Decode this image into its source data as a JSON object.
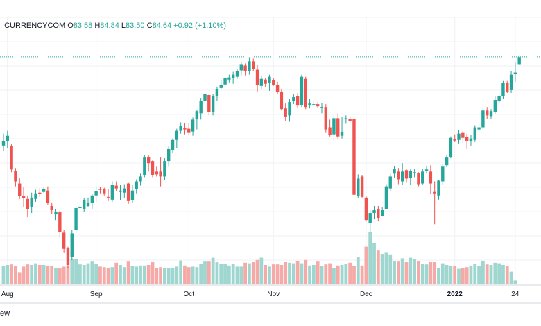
{
  "legend": {
    "symbol": ", CURRENCYCOM",
    "open_label": "O",
    "open": "83.58",
    "high_label": "H",
    "high": "84.84",
    "low_label": "L",
    "low": "83.50",
    "close_label": "C",
    "close": "84.64",
    "change": "+0.92 (+1.10%)"
  },
  "footer": {
    "text": "ew"
  },
  "colors": {
    "up": "#26a69a",
    "down": "#ef5350",
    "up_vol": "#9fd6cf",
    "down_vol": "#f5aaa7",
    "grid": "#eef0f3",
    "axis": "#d1d4dc",
    "last_price": "#26a69a"
  },
  "chart_data": {
    "type": "candlestick",
    "symbol": "CURRENCYCOM",
    "period": "2021-07 to 2022-01",
    "y_range": [
      55,
      87
    ],
    "last_price": 84.64,
    "x_tick_labels": [
      "Aug",
      "Sep",
      "Oct",
      "Nov",
      "Dec",
      "2022",
      "24"
    ],
    "x_tick_index": [
      1,
      23,
      46,
      67,
      90,
      112,
      127
    ],
    "ohlc": [
      [
        72.0,
        73.7,
        71.3,
        72.6
      ],
      [
        72.6,
        74.1,
        71.6,
        73.4
      ],
      [
        72.0,
        72.2,
        68.2,
        68.6
      ],
      [
        68.4,
        68.8,
        66.2,
        66.9
      ],
      [
        66.6,
        67.4,
        64.4,
        64.8
      ],
      [
        64.8,
        66.1,
        63.3,
        64.5
      ],
      [
        64.4,
        64.9,
        61.8,
        63.0
      ],
      [
        63.3,
        65.3,
        62.4,
        64.6
      ],
      [
        64.4,
        65.7,
        64.0,
        65.2
      ],
      [
        65.3,
        65.9,
        64.7,
        65.1
      ],
      [
        65.4,
        66.0,
        65.3,
        65.8
      ],
      [
        65.6,
        66.2,
        63.5,
        63.8
      ],
      [
        63.4,
        63.9,
        62.3,
        62.8
      ],
      [
        62.2,
        63.0,
        61.4,
        62.6
      ],
      [
        62.5,
        62.8,
        58.9,
        59.7
      ],
      [
        59.6,
        60.0,
        56.7,
        57.3
      ],
      [
        57.4,
        57.6,
        54.5,
        55.0
      ],
      [
        56.1,
        60.0,
        55.7,
        59.5
      ],
      [
        60.0,
        63.4,
        59.5,
        63.1
      ],
      [
        63.1,
        63.6,
        63.0,
        63.3
      ],
      [
        63.0,
        64.5,
        62.5,
        64.2
      ],
      [
        63.4,
        64.6,
        63.3,
        63.8
      ],
      [
        63.8,
        65.1,
        63.0,
        64.9
      ],
      [
        64.9,
        66.2,
        64.0,
        65.5
      ],
      [
        65.8,
        66.1,
        65.2,
        65.7
      ],
      [
        65.8,
        66.0,
        64.9,
        65.2
      ],
      [
        64.7,
        65.8,
        64.1,
        64.6
      ],
      [
        64.3,
        66.9,
        64.0,
        66.4
      ],
      [
        66.3,
        66.9,
        65.5,
        65.9
      ],
      [
        65.4,
        66.4,
        64.2,
        65.6
      ],
      [
        65.3,
        66.5,
        64.5,
        65.9
      ],
      [
        66.6,
        66.7,
        63.7,
        64.1
      ],
      [
        64.2,
        66.4,
        63.9,
        65.6
      ],
      [
        65.8,
        67.2,
        65.2,
        66.9
      ],
      [
        66.9,
        68.0,
        66.3,
        67.6
      ],
      [
        67.8,
        70.6,
        67.5,
        70.3
      ],
      [
        70.4,
        70.6,
        68.3,
        69.5
      ],
      [
        69.8,
        69.9,
        67.5,
        67.8
      ],
      [
        68.3,
        69.0,
        67.6,
        67.9
      ],
      [
        68.3,
        70.3,
        66.2,
        67.6
      ],
      [
        67.6,
        70.2,
        67.1,
        69.8
      ],
      [
        69.8,
        71.9,
        69.0,
        71.5
      ],
      [
        71.4,
        73.0,
        71.0,
        72.8
      ],
      [
        72.8,
        74.4,
        71.6,
        74.1
      ],
      [
        74.1,
        75.3,
        73.7,
        74.8
      ],
      [
        74.5,
        75.2,
        73.6,
        74.3
      ],
      [
        74.4,
        75.2,
        73.5,
        73.8
      ],
      [
        74.0,
        76.0,
        73.4,
        75.7
      ],
      [
        75.8,
        77.1,
        74.3,
        76.9
      ],
      [
        76.6,
        78.7,
        75.7,
        78.4
      ],
      [
        78.4,
        79.7,
        78.0,
        79.3
      ],
      [
        79.2,
        79.4,
        76.3,
        76.8
      ],
      [
        76.8,
        79.3,
        76.3,
        79.0
      ],
      [
        79.0,
        80.4,
        78.4,
        80.0
      ],
      [
        80.2,
        81.3,
        80.0,
        80.6
      ],
      [
        80.7,
        81.8,
        80.3,
        81.6
      ],
      [
        81.4,
        82.1,
        81.0,
        81.7
      ],
      [
        81.6,
        82.5,
        80.8,
        82.1
      ],
      [
        81.8,
        82.9,
        81.5,
        82.6
      ],
      [
        82.7,
        83.9,
        82.0,
        83.6
      ],
      [
        83.4,
        83.7,
        82.0,
        82.6
      ],
      [
        82.6,
        84.6,
        82.1,
        84.0
      ],
      [
        84.0,
        84.4,
        82.6,
        82.9
      ],
      [
        82.8,
        83.5,
        79.7,
        80.6
      ],
      [
        80.5,
        82.0,
        80.0,
        81.5
      ],
      [
        81.4,
        81.6,
        80.3,
        80.8
      ],
      [
        80.9,
        82.1,
        79.8,
        81.8
      ],
      [
        81.3,
        81.6,
        80.5,
        80.6
      ],
      [
        80.6,
        81.1,
        79.3,
        79.6
      ],
      [
        79.7,
        80.1,
        77.0,
        77.2
      ],
      [
        77.3,
        78.0,
        75.5,
        76.1
      ],
      [
        76.3,
        78.6,
        75.4,
        78.2
      ],
      [
        78.3,
        79.4,
        77.9,
        78.9
      ],
      [
        79.0,
        79.5,
        77.4,
        77.7
      ],
      [
        77.8,
        82.1,
        77.5,
        81.8
      ],
      [
        81.5,
        81.8,
        77.2,
        77.5
      ],
      [
        77.8,
        78.6,
        77.3,
        78.0
      ],
      [
        77.8,
        78.3,
        77.6,
        77.9
      ],
      [
        77.9,
        78.2,
        77.3,
        77.6
      ],
      [
        77.5,
        78.1,
        76.6,
        77.5
      ],
      [
        77.5,
        77.9,
        73.8,
        74.3
      ],
      [
        74.6,
        75.7,
        73.3,
        73.5
      ],
      [
        73.6,
        76.3,
        72.7,
        75.9
      ],
      [
        75.9,
        76.6,
        72.9,
        73.3
      ],
      [
        73.4,
        76.1,
        73.0,
        73.9
      ],
      [
        75.8,
        76.3,
        75.1,
        75.9
      ],
      [
        75.8,
        76.2,
        75.2,
        75.5
      ],
      [
        75.8,
        75.8,
        64.8,
        65.0
      ],
      [
        64.8,
        67.9,
        64.5,
        67.3
      ],
      [
        67.6,
        67.8,
        64.6,
        64.7
      ],
      [
        64.6,
        64.8,
        61.2,
        61.4
      ],
      [
        61.0,
        62.8,
        59.7,
        62.4
      ],
      [
        62.4,
        63.4,
        61.5,
        62.8
      ],
      [
        62.9,
        63.4,
        61.2,
        61.7
      ],
      [
        62.0,
        63.2,
        61.9,
        62.8
      ],
      [
        63.0,
        66.5,
        62.9,
        66.2
      ],
      [
        65.9,
        68.0,
        65.5,
        67.6
      ],
      [
        68.0,
        69.1,
        67.4,
        68.7
      ],
      [
        68.3,
        68.8,
        66.5,
        67.2
      ],
      [
        66.9,
        69.5,
        66.4,
        68.3
      ],
      [
        68.5,
        68.7,
        66.7,
        67.3
      ],
      [
        67.4,
        68.6,
        66.4,
        68.4
      ],
      [
        68.2,
        68.7,
        67.5,
        68.2
      ],
      [
        68.1,
        68.2,
        66.2,
        66.5
      ],
      [
        66.6,
        68.7,
        66.4,
        68.3
      ],
      [
        68.4,
        69.1,
        68.0,
        68.6
      ],
      [
        68.3,
        69.2,
        65.1,
        66.6
      ],
      [
        65.4,
        66.9,
        60.8,
        65.2
      ],
      [
        64.9,
        67.1,
        64.3,
        67.0
      ],
      [
        66.9,
        69.4,
        66.4,
        69.0
      ],
      [
        69.2,
        70.7,
        68.9,
        70.3
      ],
      [
        70.4,
        73.3,
        70.2,
        73.1
      ],
      [
        72.9,
        73.6,
        72.5,
        72.7
      ],
      [
        72.8,
        74.2,
        72.3,
        73.7
      ],
      [
        73.8,
        74.1,
        72.4,
        73.1
      ],
      [
        73.2,
        73.7,
        71.5,
        72.6
      ],
      [
        72.6,
        73.5,
        72.0,
        73.0
      ],
      [
        72.8,
        74.9,
        72.5,
        74.6
      ],
      [
        74.3,
        75.0,
        74.0,
        74.6
      ],
      [
        74.6,
        77.4,
        74.3,
        77.0
      ],
      [
        77.0,
        77.5,
        75.8,
        76.3
      ],
      [
        76.2,
        77.2,
        75.8,
        76.9
      ],
      [
        76.8,
        79.1,
        76.5,
        78.5
      ],
      [
        78.3,
        79.4,
        78.0,
        79.0
      ],
      [
        79.1,
        81.2,
        78.6,
        80.9
      ],
      [
        80.9,
        81.2,
        79.5,
        79.7
      ],
      [
        79.9,
        82.6,
        79.5,
        82.1
      ],
      [
        82.2,
        83.8,
        81.1,
        82.4
      ],
      [
        83.6,
        84.8,
        83.5,
        84.6
      ]
    ],
    "volume": [
      33,
      35,
      36,
      33,
      22,
      32,
      36,
      35,
      38,
      35,
      35,
      33,
      33,
      30,
      30,
      32,
      32,
      45,
      45,
      36,
      35,
      38,
      41,
      37,
      32,
      31,
      29,
      31,
      39,
      35,
      31,
      41,
      33,
      32,
      34,
      34,
      35,
      40,
      30,
      31,
      29,
      29,
      29,
      32,
      43,
      34,
      31,
      32,
      31,
      37,
      41,
      41,
      48,
      40,
      37,
      37,
      34,
      37,
      32,
      32,
      39,
      38,
      40,
      44,
      48,
      35,
      32,
      36,
      36,
      35,
      40,
      39,
      38,
      42,
      38,
      44,
      34,
      35,
      41,
      33,
      36,
      38,
      30,
      34,
      35,
      37,
      39,
      33,
      49,
      34,
      68,
      95,
      74,
      61,
      55,
      57,
      54,
      42,
      41,
      47,
      40,
      48,
      46,
      42,
      37,
      36,
      40,
      40,
      29,
      38,
      35,
      33,
      33,
      28,
      29,
      31,
      34,
      37,
      33,
      42,
      36,
      35,
      39,
      38,
      35,
      33,
      23,
      7
    ]
  }
}
